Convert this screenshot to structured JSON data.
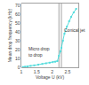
{
  "chart_data": {
    "type": "line",
    "xlabel": "Voltage U (kV)",
    "ylabel": "Mean drop frequency (kHz)",
    "x": [
      1.05,
      1.12,
      1.2,
      1.3,
      1.42,
      1.55,
      1.68,
      1.8,
      1.92,
      2.02,
      2.1,
      2.17,
      2.22,
      2.27,
      2.3,
      2.35,
      2.4,
      2.48,
      2.55,
      2.62,
      2.7,
      2.78
    ],
    "values": [
      0.3,
      0.6,
      1.0,
      1.6,
      2.2,
      3.0,
      3.8,
      4.5,
      5.2,
      5.8,
      6.3,
      7.0,
      13,
      18,
      22,
      30,
      38,
      46,
      52,
      57,
      62,
      66
    ],
    "color": "#55dddd",
    "marker": "square",
    "xlim": [
      1.0,
      2.85
    ],
    "xticks": [
      1,
      1.5,
      2,
      2.5
    ],
    "ylim": [
      0,
      72
    ],
    "yticks": [
      0,
      10,
      20,
      30,
      40,
      50,
      60,
      70
    ],
    "vlines": [
      2.22,
      2.3
    ],
    "annotations": [
      {
        "lines": [
          "Conical jet"
        ],
        "x": 2.34,
        "y": 42
      },
      {
        "lines": [
          "Micro drop",
          "to drop"
        ],
        "x": 1.18,
        "y": 18
      }
    ],
    "grid": false
  }
}
